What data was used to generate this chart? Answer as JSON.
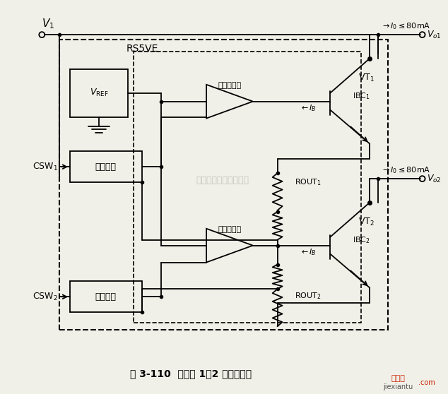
{
  "title": "图 3-110  稳压器 1～2 的使用方法",
  "watermark": "杭州溶睿科技有限公司",
  "bg_color": "#f0f0e8",
  "fig_width": 6.34,
  "fig_height": 5.58,
  "dpi": 100,
  "labels": {
    "V1": "$V_1$",
    "RS5VE": "RS5VE",
    "误差放大器": "误差放大器",
    "VREF": "$V_{\\mathrm{REF}}$",
    "CSW1": "$\\mathrm{CSW}_1$",
    "CSW2": "$\\mathrm{CSW}_2$",
    "电平移动": "电平移动",
    "IB": "$\\leftarrow I_B$",
    "VT1": "$\\mathrm{VT}_1$",
    "VT2": "$\\mathrm{VT}_2$",
    "IBC1": "$\\mathrm{IBC}_1$",
    "IBC2": "$\\mathrm{IBC}_2$",
    "ROUT1": "$\\mathrm{ROUT}_1$",
    "ROUT2": "$\\mathrm{ROUT}_2$",
    "Io": "$\\rightarrow I_0\\leq$80mA",
    "Vo1": "$V_{o1}$",
    "Vo2": "$V_{o2}$"
  }
}
